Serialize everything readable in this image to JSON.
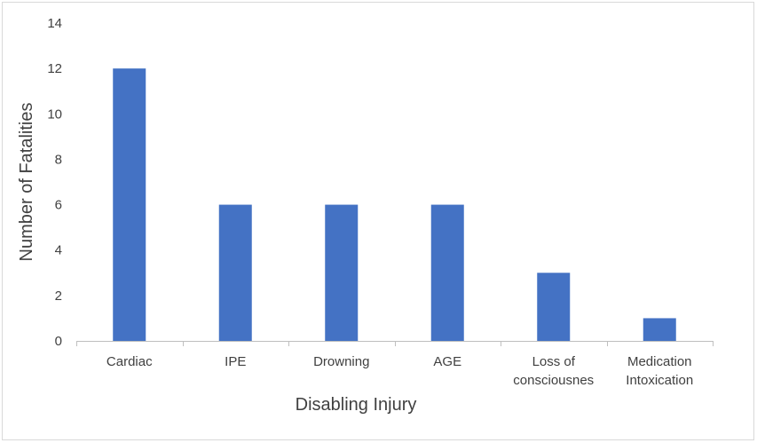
{
  "chart_data": {
    "type": "bar",
    "title": "",
    "xlabel": "Disabling Injury",
    "ylabel": "Number of Fatalities",
    "categories": [
      [
        "Cardiac"
      ],
      [
        "IPE"
      ],
      [
        "Drowning"
      ],
      [
        "AGE"
      ],
      [
        "Loss of",
        "consciousnes"
      ],
      [
        "Medication",
        "Intoxication"
      ]
    ],
    "values": [
      12,
      6,
      6,
      6,
      3,
      1
    ],
    "ylim": [
      0,
      14
    ],
    "yticks": [
      "0",
      "2",
      "4",
      "6",
      "8",
      "10",
      "12",
      "14"
    ],
    "grid": false,
    "legend": "none",
    "colors": {
      "bar": "#4472C4",
      "axis": "#bfbfbf",
      "text": "#404040"
    }
  }
}
